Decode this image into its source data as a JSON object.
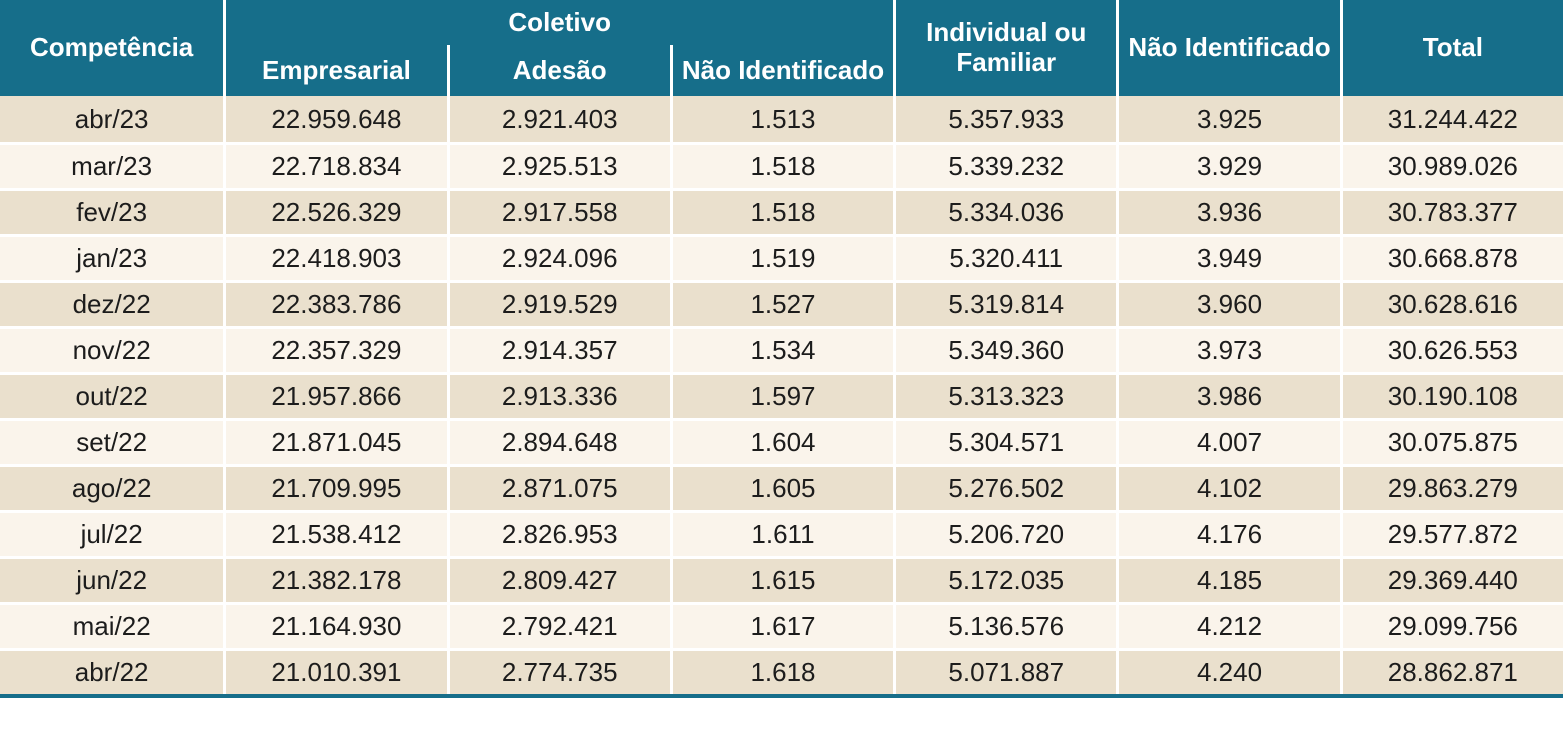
{
  "colors": {
    "header_bg": "#166E8A",
    "header_text": "#FFFFFF",
    "row_odd_bg": "#EAE0CD",
    "row_even_bg": "#FAF4EB",
    "separator": "#FFFFFF",
    "body_text": "#1C1C1C"
  },
  "table": {
    "header": {
      "competencia": "Competência",
      "coletivo_group": "Coletivo",
      "coletivo_children": [
        "Empresarial",
        "Adesão",
        "Não Identificado"
      ],
      "individual_familiar": "Individual ou Familiar",
      "nao_identificado": "Não Identificado",
      "total": "Total"
    }
  },
  "chart_data": {
    "type": "table",
    "title": "",
    "columns": [
      "Competência",
      "Coletivo - Empresarial",
      "Coletivo - Adesão",
      "Coletivo - Não Identificado",
      "Individual ou Familiar",
      "Não Identificado",
      "Total"
    ],
    "column_keys": [
      "competencia",
      "empresarial",
      "adesao",
      "nao-identificado-coletivo",
      "individual-ou-familiar",
      "nao-identificado",
      "total"
    ],
    "rows": [
      [
        "abr/23",
        "22.959.648",
        "2.921.403",
        "1.513",
        "5.357.933",
        "3.925",
        "31.244.422"
      ],
      [
        "mar/23",
        "22.718.834",
        "2.925.513",
        "1.518",
        "5.339.232",
        "3.929",
        "30.989.026"
      ],
      [
        "fev/23",
        "22.526.329",
        "2.917.558",
        "1.518",
        "5.334.036",
        "3.936",
        "30.783.377"
      ],
      [
        "jan/23",
        "22.418.903",
        "2.924.096",
        "1.519",
        "5.320.411",
        "3.949",
        "30.668.878"
      ],
      [
        "dez/22",
        "22.383.786",
        "2.919.529",
        "1.527",
        "5.319.814",
        "3.960",
        "30.628.616"
      ],
      [
        "nov/22",
        "22.357.329",
        "2.914.357",
        "1.534",
        "5.349.360",
        "3.973",
        "30.626.553"
      ],
      [
        "out/22",
        "21.957.866",
        "2.913.336",
        "1.597",
        "5.313.323",
        "3.986",
        "30.190.108"
      ],
      [
        "set/22",
        "21.871.045",
        "2.894.648",
        "1.604",
        "5.304.571",
        "4.007",
        "30.075.875"
      ],
      [
        "ago/22",
        "21.709.995",
        "2.871.075",
        "1.605",
        "5.276.502",
        "4.102",
        "29.863.279"
      ],
      [
        "jul/22",
        "21.538.412",
        "2.826.953",
        "1.611",
        "5.206.720",
        "4.176",
        "29.577.872"
      ],
      [
        "jun/22",
        "21.382.178",
        "2.809.427",
        "1.615",
        "5.172.035",
        "4.185",
        "29.369.440"
      ],
      [
        "mai/22",
        "21.164.930",
        "2.792.421",
        "1.617",
        "5.136.576",
        "4.212",
        "29.099.756"
      ],
      [
        "abr/22",
        "21.010.391",
        "2.774.735",
        "1.618",
        "5.071.887",
        "4.240",
        "28.862.871"
      ]
    ]
  }
}
